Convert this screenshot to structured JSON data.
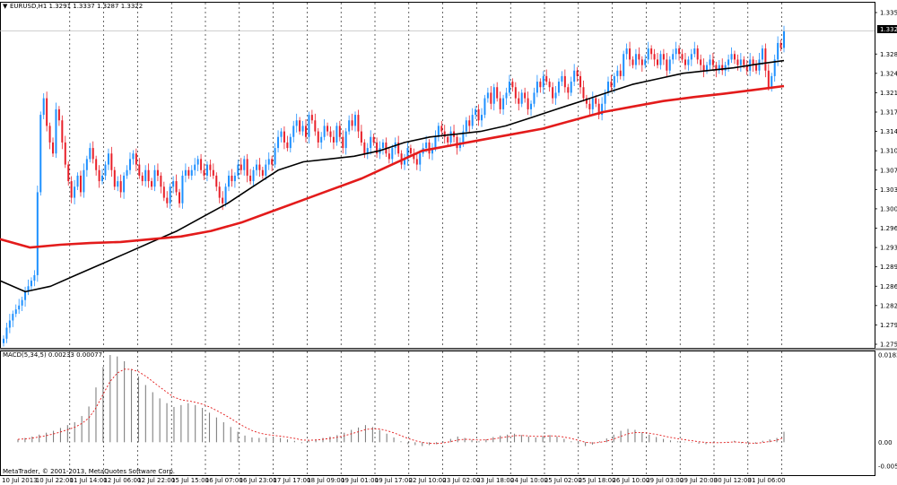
{
  "window": {
    "symbol_line": "EURUSD,H1  1.3291 1.3337 1.3287 1.3322",
    "menu_glyph": "▼"
  },
  "price_panel": {
    "current_price_label": "1.3322",
    "y_ticks": [
      "1.3355",
      "1.3280",
      "1.3245",
      "1.3210",
      "1.3175",
      "1.3140",
      "1.3105",
      "1.3070",
      "1.3035",
      "1.3000",
      "1.2965",
      "1.2930",
      "1.2895",
      "1.2860",
      "1.2825",
      "1.2790",
      "1.2755"
    ]
  },
  "macd_panel": {
    "label": "MACD(5,34,5) 0.00233 0.00077",
    "y_ticks": [
      "0.0183",
      "0.00",
      "-0.00502"
    ]
  },
  "time_axis": {
    "labels": [
      "10 Jul 2013",
      "10 Jul 22:00",
      "11 Jul 14:00",
      "12 Jul 06:00",
      "12 Jul 22:00",
      "15 Jul 15:00",
      "16 Jul 07:00",
      "16 Jul 23:00",
      "17 Jul 17:00",
      "18 Jul 09:00",
      "19 Jul 01:00",
      "19 Jul 17:00",
      "22 Jul 10:00",
      "23 Jul 02:00",
      "23 Jul 18:00",
      "24 Jul 10:00",
      "25 Jul 02:00",
      "25 Jul 18:00",
      "26 Jul 10:00",
      "29 Jul 03:00",
      "29 Jul 20:00",
      "30 Jul 12:00",
      "31 Jul 06:00"
    ]
  },
  "footer": {
    "copyright": "MetaTrader, © 2001-2013, MetaQuotes Software Corp."
  },
  "colors": {
    "background": "#ffffff",
    "bull_candle": "#1e90ff",
    "bear_candle": "#e8202a",
    "ma_fast": "#000000",
    "ma_slow": "#e31b1b",
    "grid": "#000000",
    "macd_histogram": "#808080",
    "macd_signal": "#e31b1b",
    "price_line": "#c0c0c0"
  },
  "chart_data": [
    {
      "type": "candlestick",
      "title": "EURUSD,H1",
      "symbol": "EURUSD",
      "timeframe": "H1",
      "last_bar": {
        "open": 1.3291,
        "high": 1.3337,
        "low": 1.3287,
        "close": 1.3322
      },
      "ylim": [
        1.2755,
        1.3355
      ],
      "closes_approx": [
        1.2765,
        1.2785,
        1.2798,
        1.281,
        1.2818,
        1.2825,
        1.2835,
        1.285,
        1.286,
        1.287,
        1.288,
        1.303,
        1.317,
        1.32,
        1.315,
        1.312,
        1.31,
        1.318,
        1.316,
        1.312,
        1.308,
        1.305,
        1.302,
        1.304,
        1.306,
        1.303,
        1.307,
        1.309,
        1.311,
        1.309,
        1.307,
        1.305,
        1.306,
        1.308,
        1.31,
        1.307,
        1.304,
        1.305,
        1.303,
        1.306,
        1.307,
        1.309,
        1.31,
        1.308,
        1.306,
        1.305,
        1.307,
        1.305,
        1.304,
        1.307,
        1.306,
        1.304,
        1.302,
        1.301,
        1.304,
        1.305,
        1.303,
        1.301,
        1.306,
        1.307,
        1.306,
        1.307,
        1.308,
        1.309,
        1.307,
        1.306,
        1.308,
        1.307,
        1.306,
        1.304,
        1.302,
        1.301,
        1.304,
        1.306,
        1.305,
        1.306,
        1.308,
        1.307,
        1.309,
        1.306,
        1.305,
        1.307,
        1.308,
        1.307,
        1.306,
        1.308,
        1.309,
        1.308,
        1.311,
        1.313,
        1.314,
        1.312,
        1.311,
        1.313,
        1.315,
        1.316,
        1.314,
        1.315,
        1.313,
        1.317,
        1.316,
        1.314,
        1.312,
        1.313,
        1.315,
        1.314,
        1.313,
        1.312,
        1.315,
        1.313,
        1.311,
        1.314,
        1.316,
        1.315,
        1.317,
        1.314,
        1.312,
        1.31,
        1.311,
        1.313,
        1.312,
        1.31,
        1.311,
        1.312,
        1.31,
        1.309,
        1.311,
        1.312,
        1.31,
        1.308,
        1.309,
        1.311,
        1.31,
        1.309,
        1.308,
        1.31,
        1.311,
        1.312,
        1.31,
        1.311,
        1.313,
        1.315,
        1.314,
        1.313,
        1.312,
        1.314,
        1.313,
        1.311,
        1.312,
        1.314,
        1.316,
        1.315,
        1.317,
        1.318,
        1.316,
        1.317,
        1.32,
        1.321,
        1.319,
        1.322,
        1.32,
        1.318,
        1.32,
        1.321,
        1.323,
        1.322,
        1.32,
        1.319,
        1.321,
        1.32,
        1.318,
        1.319,
        1.321,
        1.323,
        1.322,
        1.324,
        1.323,
        1.322,
        1.32,
        1.321,
        1.323,
        1.324,
        1.322,
        1.321,
        1.323,
        1.325,
        1.324,
        1.322,
        1.32,
        1.319,
        1.318,
        1.32,
        1.319,
        1.317,
        1.319,
        1.321,
        1.323,
        1.322,
        1.324,
        1.325,
        1.324,
        1.328,
        1.329,
        1.327,
        1.326,
        1.328,
        1.327,
        1.326,
        1.327,
        1.329,
        1.328,
        1.327,
        1.326,
        1.328,
        1.327,
        1.325,
        1.327,
        1.328,
        1.329,
        1.328,
        1.327,
        1.326,
        1.327,
        1.328,
        1.329,
        1.327,
        1.326,
        1.325,
        1.326,
        1.327,
        1.326,
        1.325,
        1.326,
        1.325,
        1.326,
        1.327,
        1.328,
        1.327,
        1.326,
        1.327,
        1.326,
        1.325,
        1.327,
        1.326,
        1.325,
        1.327,
        1.329,
        1.325,
        1.322,
        1.324,
        1.327,
        1.33,
        1.3291,
        1.3322
      ],
      "series": [
        {
          "name": "MA fast (black)",
          "values": [
            1.287,
            1.285,
            1.286,
            1.288,
            1.29,
            1.292,
            1.294,
            1.296,
            1.2985,
            1.301,
            1.304,
            1.307,
            1.3085,
            1.309,
            1.3095,
            1.3105,
            1.312,
            1.313,
            1.3135,
            1.314,
            1.315,
            1.3165,
            1.318,
            1.3195,
            1.321,
            1.3225,
            1.3235,
            1.3245,
            1.325,
            1.3255,
            1.3262,
            1.3268
          ]
        },
        {
          "name": "MA slow (red)",
          "values": [
            1.2945,
            1.293,
            1.2935,
            1.2938,
            1.294,
            1.2945,
            1.295,
            1.296,
            1.2975,
            1.2995,
            1.3015,
            1.3035,
            1.3055,
            1.308,
            1.3105,
            1.3115,
            1.3125,
            1.3135,
            1.3145,
            1.316,
            1.3175,
            1.3185,
            1.3195,
            1.3202,
            1.3208,
            1.3215,
            1.3222
          ]
        }
      ]
    },
    {
      "type": "bar",
      "title": "MACD(5,34,5)",
      "values_label": [
        "0.00233",
        "0.00077"
      ],
      "ylim": [
        -0.00502,
        0.0183
      ],
      "histogram_approx": [
        0.0006,
        0.0009,
        0.0012,
        0.0016,
        0.002,
        0.0024,
        0.003,
        0.0036,
        0.0042,
        0.0055,
        0.0075,
        0.0115,
        0.0158,
        0.0183,
        0.018,
        0.017,
        0.0152,
        0.0138,
        0.012,
        0.0105,
        0.0092,
        0.0082,
        0.0074,
        0.0078,
        0.0082,
        0.0078,
        0.0072,
        0.0062,
        0.0052,
        0.0042,
        0.0032,
        0.0022,
        0.0014,
        0.001,
        0.0009,
        0.001,
        0.0011,
        0.0009,
        0.0006,
        0.0003,
        -0.0002,
        0.0003,
        0.0006,
        0.0009,
        0.0012,
        0.0015,
        0.002,
        0.0026,
        0.0031,
        0.0036,
        0.0032,
        0.0026,
        0.0018,
        0.001,
        0.0002,
        -0.0004,
        -0.0006,
        -0.0008,
        -0.0006,
        -0.0004,
        0.0001,
        0.0007,
        0.0012,
        0.0009,
        0.0005,
        0.0002,
        0.0006,
        0.0011,
        0.0014,
        0.0016,
        0.0018,
        0.0015,
        0.0012,
        0.001,
        0.0013,
        0.0015,
        0.0012,
        0.0007,
        0.0002,
        -0.0004,
        -0.0008,
        -0.0005,
        0.0002,
        0.0008,
        0.0016,
        0.0024,
        0.0028,
        0.0026,
        0.0021,
        0.0016,
        0.0011,
        0.0007,
        0.0004,
        0.0002,
        0.0001,
        -0.0001,
        -0.0003,
        -0.0004,
        -0.0002,
        -0.0001,
        0.0001,
        0.0003,
        -0.0002,
        -0.0005,
        -0.0003,
        0.0003,
        0.0006,
        0.0009,
        0.0022
      ]
    }
  ]
}
